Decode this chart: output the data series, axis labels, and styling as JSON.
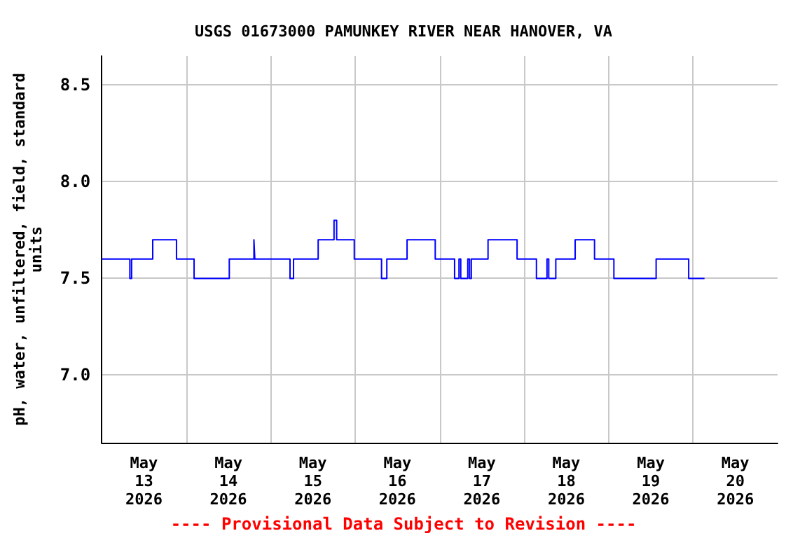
{
  "chart_data": {
    "type": "step",
    "title": "USGS 01673000 PAMUNKEY RIVER NEAR HANOVER, VA",
    "ylabel": "pH, water, unfiltered, field, standard units",
    "annotations": [
      "---- Provisional Data Subject to Revision ----"
    ],
    "x": [
      "2026-05-13T00:00",
      "2026-05-13T08:00",
      "2026-05-13T08:30",
      "2026-05-13T14:30",
      "2026-05-13T21:15",
      "2026-05-14T02:15",
      "2026-05-14T12:15",
      "2026-05-14T19:15",
      "2026-05-14T19:30",
      "2026-05-15T05:30",
      "2026-05-15T06:30",
      "2026-05-15T13:30",
      "2026-05-15T18:00",
      "2026-05-15T18:45",
      "2026-05-15T23:45",
      "2026-05-16T07:30",
      "2026-05-16T09:00",
      "2026-05-16T14:45",
      "2026-05-16T22:45",
      "2026-05-17T04:15",
      "2026-05-17T05:30",
      "2026-05-17T06:00",
      "2026-05-17T08:00",
      "2026-05-17T08:30",
      "2026-05-17T09:00",
      "2026-05-17T13:45",
      "2026-05-17T22:00",
      "2026-05-18T03:30",
      "2026-05-18T06:30",
      "2026-05-18T07:00",
      "2026-05-18T09:00",
      "2026-05-18T14:30",
      "2026-05-18T20:00",
      "2026-05-19T01:30",
      "2026-05-19T13:30",
      "2026-05-19T22:45",
      "2026-05-20T03:15"
    ],
    "series": [
      {
        "color": "#0000ff",
        "values": [
          7.6,
          7.5,
          7.6,
          7.7,
          7.6,
          7.5,
          7.6,
          7.7,
          7.6,
          7.5,
          7.6,
          7.7,
          7.8,
          7.7,
          7.6,
          7.5,
          7.6,
          7.7,
          7.6,
          7.5,
          7.6,
          7.5,
          7.6,
          7.5,
          7.6,
          7.7,
          7.6,
          7.5,
          7.6,
          7.5,
          7.6,
          7.7,
          7.6,
          7.5,
          7.6,
          7.5,
          7.5
        ]
      }
    ],
    "xlim": [
      "2026-05-13T00:00",
      "2026-05-21T00:00"
    ],
    "xticks": [
      {
        "value": "2026-05-13T12:00",
        "label": "May\n13\n2026"
      },
      {
        "value": "2026-05-14T00:00",
        "label": null
      },
      {
        "value": "2026-05-14T12:00",
        "label": "May\n14\n2026"
      },
      {
        "value": "2026-05-15T00:00",
        "label": null
      },
      {
        "value": "2026-05-15T12:00",
        "label": "May\n15\n2026"
      },
      {
        "value": "2026-05-16T00:00",
        "label": null
      },
      {
        "value": "2026-05-16T12:00",
        "label": "May\n16\n2026"
      },
      {
        "value": "2026-05-17T00:00",
        "label": null
      },
      {
        "value": "2026-05-17T12:00",
        "label": "May\n17\n2026"
      },
      {
        "value": "2026-05-18T00:00",
        "label": null
      },
      {
        "value": "2026-05-18T12:00",
        "label": "May\n18\n2026"
      },
      {
        "value": "2026-05-19T00:00",
        "label": null
      },
      {
        "value": "2026-05-19T12:00",
        "label": "May\n19\n2026"
      },
      {
        "value": "2026-05-20T00:00",
        "label": null
      },
      {
        "value": "2026-05-20T12:00",
        "label": "May\n20\n2026"
      }
    ],
    "ylim": [
      6.65,
      8.65
    ],
    "yticks": [
      {
        "value": 7,
        "label": "7.0"
      },
      7.5,
      {
        "value": 8,
        "label": "8.0"
      },
      8.5
    ],
    "grid": true
  }
}
